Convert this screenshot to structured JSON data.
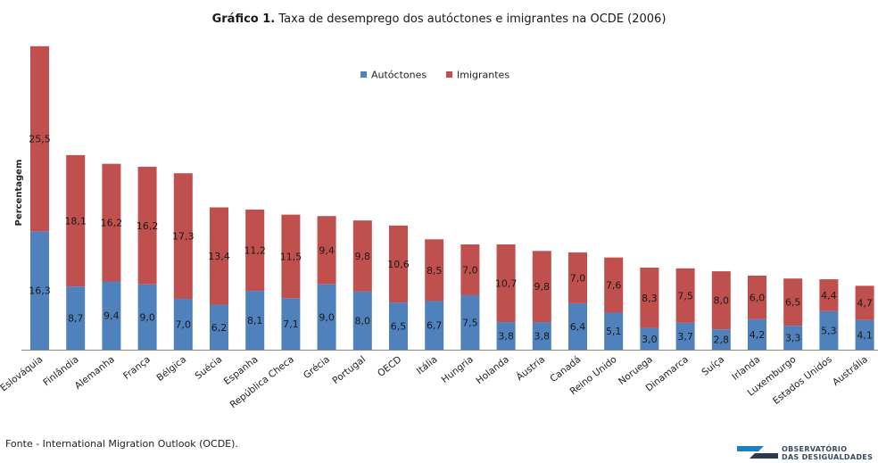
{
  "title": {
    "bold": "Gráfico 1.",
    "rest": "Taxa de desemprego dos autóctones e imigrantes na OCDE (2006)"
  },
  "source": "Fonte - International Migration Outlook (OCDE).",
  "logo": {
    "line1": "OBSERVATÓRIO",
    "line2": "DAS DESIGUALDADES",
    "colors": [
      "#1f7fc2",
      "#2a3b4f"
    ]
  },
  "colors": {
    "autoctones": "#4f81bd",
    "imigrantes": "#c0504d"
  },
  "chart_data": {
    "type": "bar",
    "stacked": true,
    "title": "Gráfico 1. Taxa de desemprego dos autóctones e imigrantes na OCDE (2006)",
    "xlabel": "",
    "ylabel": "Percentagem",
    "ylim": [
      0,
      43
    ],
    "grid": false,
    "legend_position": "top-center",
    "categories": [
      "Eslováquia",
      "Finlândia",
      "Alemanha",
      "França",
      "Bélgica",
      "Suécia",
      "Espanha",
      "República Checa",
      "Grécia",
      "Portugal",
      "OECD",
      "Itália",
      "Hungria",
      "Holanda",
      "Áustria",
      "Canadá",
      "Reino Unido",
      "Noruega",
      "Dinamarca",
      "Suíça",
      "Irlanda",
      "Luxemburgo",
      "Estados Unidos",
      "Austrália"
    ],
    "series": [
      {
        "name": "Autóctones",
        "values": [
          16.3,
          8.7,
          9.4,
          9.0,
          7.0,
          6.2,
          8.1,
          7.1,
          9.0,
          8.0,
          6.5,
          6.7,
          7.5,
          3.8,
          3.8,
          6.4,
          5.1,
          3.0,
          3.7,
          2.8,
          4.2,
          3.3,
          5.3,
          4.1
        ],
        "labels": [
          "16,3",
          "8,7",
          "9,4",
          "9,0",
          "7,0",
          "6,2",
          "8,1",
          "7,1",
          "9,0",
          "8,0",
          "6,5",
          "6,7",
          "7,5",
          "3,8",
          "3,8",
          "6,4",
          "5,1",
          "3,0",
          "3,7",
          "2,8",
          "4,2",
          "3,3",
          "5,3",
          "4,1"
        ]
      },
      {
        "name": "Imigrantes",
        "values": [
          25.5,
          18.1,
          16.2,
          16.2,
          17.3,
          13.4,
          11.2,
          11.5,
          9.4,
          9.8,
          10.6,
          8.5,
          7.0,
          10.7,
          9.8,
          7.0,
          7.6,
          8.3,
          7.5,
          8.0,
          6.0,
          6.5,
          4.4,
          4.7
        ],
        "labels": [
          "25,5",
          "18,1",
          "16,2",
          "16,2",
          "17,3",
          "13,4",
          "11,2",
          "11,5",
          "9,4",
          "9,8",
          "10,6",
          "8,5",
          "7,0",
          "10,7",
          "9,8",
          "7,0",
          "7,6",
          "8,3",
          "7,5",
          "8,0",
          "6,0",
          "6,5",
          "4,4",
          "4,7"
        ]
      }
    ]
  }
}
